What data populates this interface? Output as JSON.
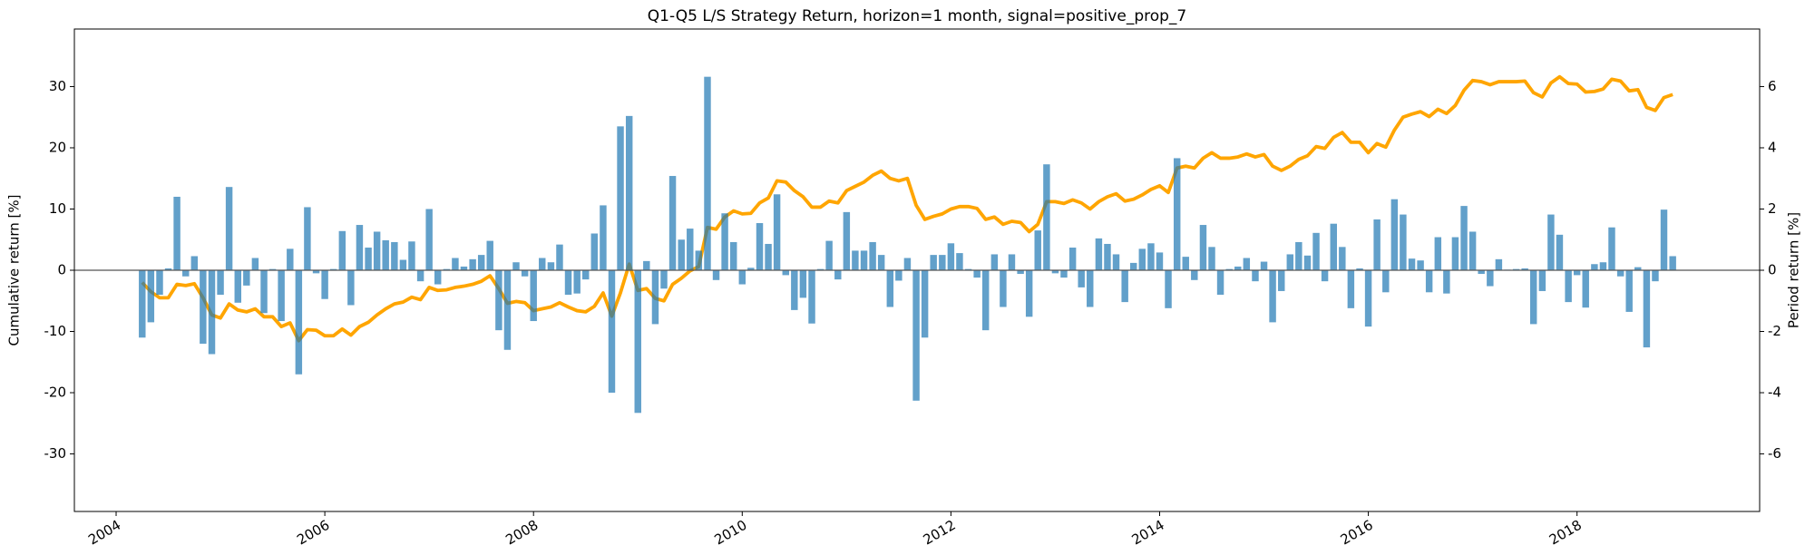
{
  "chart_data": {
    "type": "bar",
    "title": "Q1-Q5 L/S Strategy Return, horizon=1 month, signal=positive_prop_7",
    "y_label": "Cumulative return [%]",
    "y2_label": "Period return [%]",
    "xlim": [
      2003.6,
      2019.75
    ],
    "xticks": [
      2004,
      2006,
      2008,
      2010,
      2012,
      2014,
      2016,
      2018
    ],
    "ylim": [
      -39.4,
      39.4
    ],
    "yticks": [
      -30,
      -20,
      -10,
      0,
      10,
      20,
      30
    ],
    "y2lim": [
      -7.88,
      7.88
    ],
    "y2ticks": [
      -6,
      -4,
      -2,
      0,
      2,
      4,
      6
    ],
    "grid": false,
    "x": [
      2004.25,
      2004.333,
      2004.417,
      2004.5,
      2004.583,
      2004.667,
      2004.75,
      2004.833,
      2004.917,
      2005,
      2005.083,
      2005.167,
      2005.25,
      2005.333,
      2005.417,
      2005.5,
      2005.583,
      2005.667,
      2005.75,
      2005.833,
      2005.917,
      2006,
      2006.083,
      2006.167,
      2006.25,
      2006.333,
      2006.417,
      2006.5,
      2006.583,
      2006.667,
      2006.75,
      2006.833,
      2006.917,
      2007,
      2007.083,
      2007.167,
      2007.25,
      2007.333,
      2007.417,
      2007.5,
      2007.583,
      2007.667,
      2007.75,
      2007.833,
      2007.917,
      2008,
      2008.083,
      2008.167,
      2008.25,
      2008.333,
      2008.417,
      2008.5,
      2008.583,
      2008.667,
      2008.75,
      2008.833,
      2008.917,
      2009,
      2009.083,
      2009.167,
      2009.25,
      2009.333,
      2009.417,
      2009.5,
      2009.583,
      2009.667,
      2009.75,
      2009.833,
      2009.917,
      2010,
      2010.083,
      2010.167,
      2010.25,
      2010.333,
      2010.417,
      2010.5,
      2010.583,
      2010.667,
      2010.75,
      2010.833,
      2010.917,
      2011,
      2011.083,
      2011.167,
      2011.25,
      2011.333,
      2011.417,
      2011.5,
      2011.583,
      2011.667,
      2011.75,
      2011.833,
      2011.917,
      2012,
      2012.083,
      2012.167,
      2012.25,
      2012.333,
      2012.417,
      2012.5,
      2012.583,
      2012.667,
      2012.75,
      2012.833,
      2012.917,
      2013,
      2013.083,
      2013.167,
      2013.25,
      2013.333,
      2013.417,
      2013.5,
      2013.583,
      2013.667,
      2013.75,
      2013.833,
      2013.917,
      2014,
      2014.083,
      2014.167,
      2014.25,
      2014.333,
      2014.417,
      2014.5,
      2014.583,
      2014.667,
      2014.75,
      2014.833,
      2014.917,
      2015,
      2015.083,
      2015.167,
      2015.25,
      2015.333,
      2015.417,
      2015.5,
      2015.583,
      2015.667,
      2015.75,
      2015.833,
      2015.917,
      2016,
      2016.083,
      2016.167,
      2016.25,
      2016.333,
      2016.417,
      2016.5,
      2016.583,
      2016.667,
      2016.75,
      2016.833,
      2016.917,
      2017,
      2017.083,
      2017.167,
      2017.25,
      2017.333,
      2017.417,
      2017.5,
      2017.583,
      2017.667,
      2017.75,
      2017.833,
      2017.917,
      2018,
      2018.083,
      2018.167,
      2018.25,
      2018.333,
      2018.417,
      2018.5,
      2018.583,
      2018.667,
      2018.75,
      2018.833,
      2018.917
    ],
    "series": [
      {
        "type": "bar",
        "axis": "y2",
        "color": "#1f77b4",
        "opacity": 0.7,
        "values": [
          -2.2,
          -1.7,
          -0.8,
          0.06,
          2.4,
          -0.2,
          0.46,
          -2.4,
          -2.74,
          -0.8,
          2.72,
          -1.06,
          -0.5,
          0.4,
          -1.4,
          0.04,
          -1.66,
          0.7,
          -3.4,
          2.06,
          -0.1,
          -0.94,
          0.04,
          1.28,
          -1.14,
          1.48,
          0.74,
          1.26,
          0.98,
          0.92,
          0.34,
          0.94,
          -0.36,
          2.0,
          -0.46,
          0.04,
          0.4,
          0.12,
          0.36,
          0.5,
          0.96,
          -1.96,
          -2.6,
          0.26,
          -0.2,
          -1.66,
          0.4,
          0.26,
          0.84,
          -0.8,
          -0.76,
          -0.3,
          1.2,
          2.12,
          -4.0,
          4.7,
          5.04,
          -4.66,
          0.3,
          -1.76,
          -0.6,
          3.08,
          1.0,
          1.36,
          0.64,
          6.32,
          -0.32,
          1.86,
          0.92,
          -0.46,
          0.08,
          1.54,
          0.86,
          2.48,
          -0.16,
          -1.3,
          -0.9,
          -1.74,
          0.04,
          0.96,
          -0.3,
          1.9,
          0.64,
          0.64,
          0.92,
          0.5,
          -1.2,
          -0.34,
          0.4,
          -4.26,
          -2.2,
          0.5,
          0.5,
          0.88,
          0.56,
          0.04,
          -0.24,
          -1.96,
          0.52,
          -1.2,
          0.52,
          -0.12,
          -1.52,
          1.3,
          3.46,
          -0.1,
          -0.24,
          0.74,
          -0.56,
          -1.2,
          1.04,
          0.86,
          0.52,
          -1.04,
          0.24,
          0.7,
          0.88,
          0.58,
          -1.24,
          3.66,
          0.44,
          -0.32,
          1.48,
          0.76,
          -0.8,
          0.04,
          0.12,
          0.4,
          -0.36,
          0.28,
          -1.7,
          -0.68,
          0.52,
          0.92,
          0.48,
          1.22,
          -0.36,
          1.52,
          0.76,
          -1.24,
          0.06,
          -1.84,
          1.66,
          -0.72,
          2.32,
          1.82,
          0.38,
          0.32,
          -0.72,
          1.08,
          -0.76,
          1.08,
          2.1,
          1.26,
          -0.12,
          -0.52,
          0.36,
          0.02,
          0.04,
          0.06,
          -1.76,
          -0.68,
          1.82,
          1.16,
          -1.04,
          -0.16,
          -1.22,
          0.2,
          0.26,
          1.4,
          -0.2,
          -1.36,
          0.1,
          -2.52,
          -0.36,
          1.98,
          0.46
        ]
      },
      {
        "type": "line",
        "color": "#ffa500",
        "values": [
          -2,
          -3.5,
          -4.5,
          -4.5,
          -2.3,
          -2.5,
          -2.2,
          -4.5,
          -7.3,
          -7.8,
          -5.5,
          -6.5,
          -6.8,
          -6.3,
          -7.6,
          -7.6,
          -9.2,
          -8.6,
          -11.5,
          -9.7,
          -9.8,
          -10.7,
          -10.7,
          -9.6,
          -10.6,
          -9.2,
          -8.5,
          -7.3,
          -6.3,
          -5.5,
          -5.2,
          -4.4,
          -4.8,
          -2.8,
          -3.3,
          -3.2,
          -2.8,
          -2.6,
          -2.3,
          -1.8,
          -0.9,
          -3,
          -5.4,
          -5.1,
          -5.3,
          -6.6,
          -6.3,
          -6,
          -5.3,
          -6,
          -6.6,
          -6.8,
          -5.9,
          -3.7,
          -7.5,
          -3.7,
          1,
          -3.3,
          -3,
          -4.6,
          -5,
          -2.3,
          -1.3,
          -0.1,
          0.6,
          7,
          6.7,
          8.7,
          9.7,
          9.2,
          9.3,
          11,
          11.8,
          14.6,
          14.4,
          13,
          12,
          10.3,
          10.3,
          11.3,
          11,
          13,
          13.7,
          14.4,
          15.5,
          16.2,
          15,
          14.6,
          15,
          10.6,
          8.3,
          8.8,
          9.2,
          10,
          10.4,
          10.4,
          10.1,
          8.3,
          8.7,
          7.5,
          8,
          7.8,
          6.3,
          7.5,
          11.2,
          11.2,
          10.9,
          11.5,
          11,
          10,
          11.2,
          12,
          12.5,
          11.3,
          11.6,
          12.3,
          13.2,
          13.8,
          12.7,
          16.7,
          17,
          16.7,
          18.3,
          19.2,
          18.3,
          18.3,
          18.5,
          19,
          18.5,
          18.9,
          17,
          16.3,
          17,
          18.1,
          18.7,
          20.2,
          19.9,
          21.7,
          22.5,
          20.9,
          20.9,
          19.2,
          20.7,
          20.1,
          22.9,
          25,
          25.5,
          25.9,
          25.1,
          26.3,
          25.6,
          26.9,
          29.4,
          31,
          30.8,
          30.3,
          30.8,
          30.8,
          30.8,
          30.9,
          29,
          28.3,
          30.6,
          31.6,
          30.5,
          30.4,
          29.1,
          29.2,
          29.6,
          31.2,
          30.9,
          29.3,
          29.5,
          26.6,
          26.1,
          28.2,
          28.7
        ]
      }
    ]
  }
}
